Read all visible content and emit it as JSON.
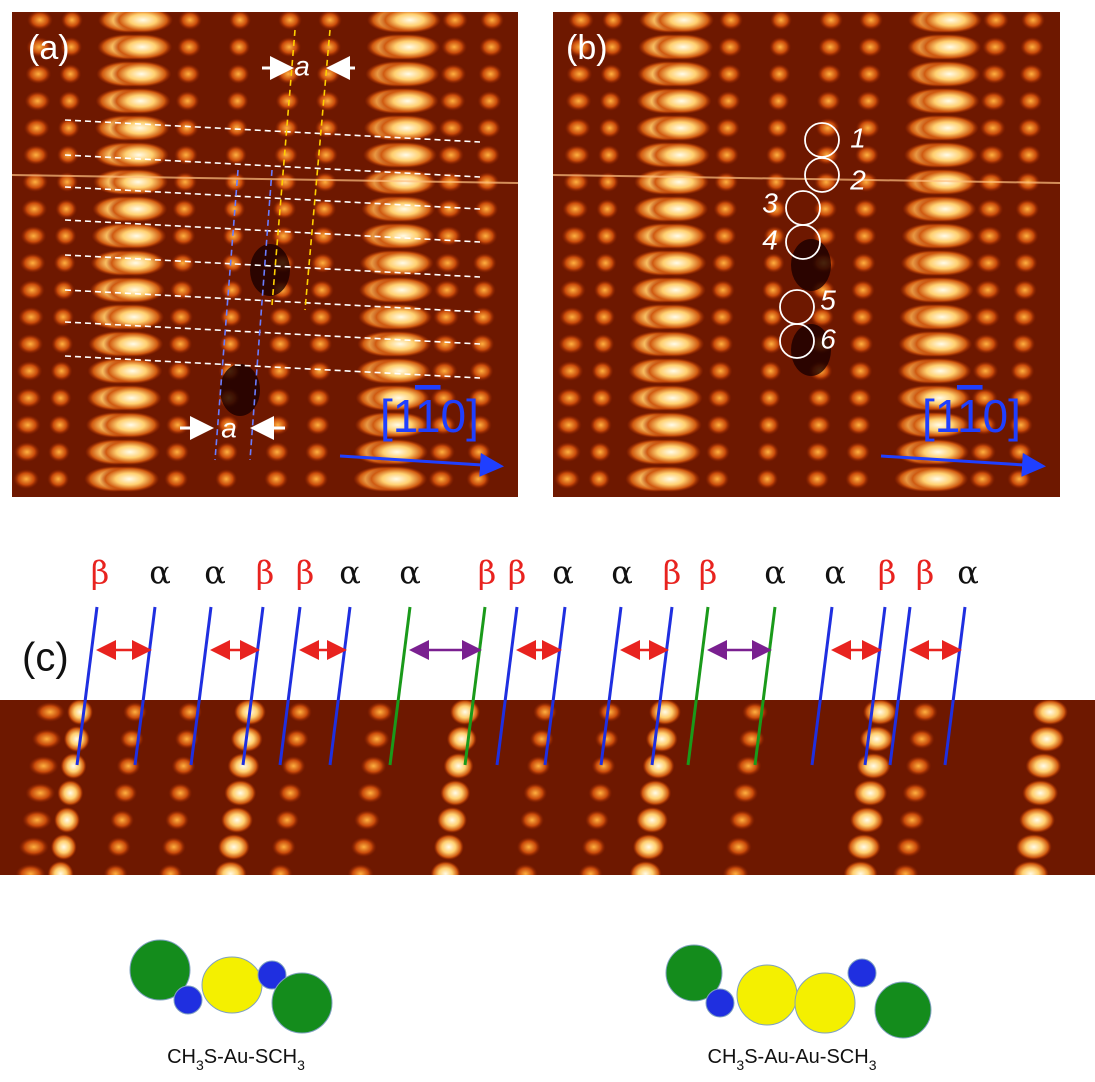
{
  "panel_a": {
    "label": "(a)",
    "spacing_label_top": "a",
    "spacing_label_bottom": "a",
    "direction": [
      {
        "text": "[1"
      },
      {
        "text": "1",
        "overline": true
      },
      {
        "text": "0]"
      }
    ]
  },
  "panel_b": {
    "label": "(b)",
    "sites": [
      "1",
      "2",
      "3",
      "4",
      "5",
      "6"
    ],
    "direction": [
      {
        "text": "[1"
      },
      {
        "text": "1",
        "overline": true
      },
      {
        "text": "0]"
      }
    ]
  },
  "panel_c": {
    "label": "(c)",
    "row_types": [
      {
        "text": "β",
        "color": "#e8231f"
      },
      {
        "text": "α",
        "color": "#111111"
      },
      {
        "text": "α",
        "color": "#111111"
      },
      {
        "text": "β",
        "color": "#e8231f"
      },
      {
        "text": "β",
        "color": "#e8231f"
      },
      {
        "text": "α",
        "color": "#111111"
      },
      {
        "text": "α",
        "color": "#111111"
      },
      {
        "text": "β",
        "color": "#e8231f"
      },
      {
        "text": "β",
        "color": "#e8231f"
      },
      {
        "text": "α",
        "color": "#111111"
      },
      {
        "text": "α",
        "color": "#111111"
      },
      {
        "text": "β",
        "color": "#e8231f"
      },
      {
        "text": "β",
        "color": "#e8231f"
      },
      {
        "text": "α",
        "color": "#111111"
      },
      {
        "text": "α",
        "color": "#111111"
      },
      {
        "text": "β",
        "color": "#e8231f"
      },
      {
        "text": "β",
        "color": "#e8231f"
      },
      {
        "text": "α",
        "color": "#111111"
      }
    ]
  },
  "molecules": [
    {
      "formula": [
        {
          "text": "CH"
        },
        {
          "text": "3",
          "sub": true
        },
        {
          "text": "S-Au-SCH"
        },
        {
          "text": "3",
          "sub": true
        }
      ]
    },
    {
      "formula": [
        {
          "text": "CH"
        },
        {
          "text": "3",
          "sub": true
        },
        {
          "text": "S-Au-Au-SCH"
        },
        {
          "text": "3",
          "sub": true
        }
      ]
    }
  ]
}
